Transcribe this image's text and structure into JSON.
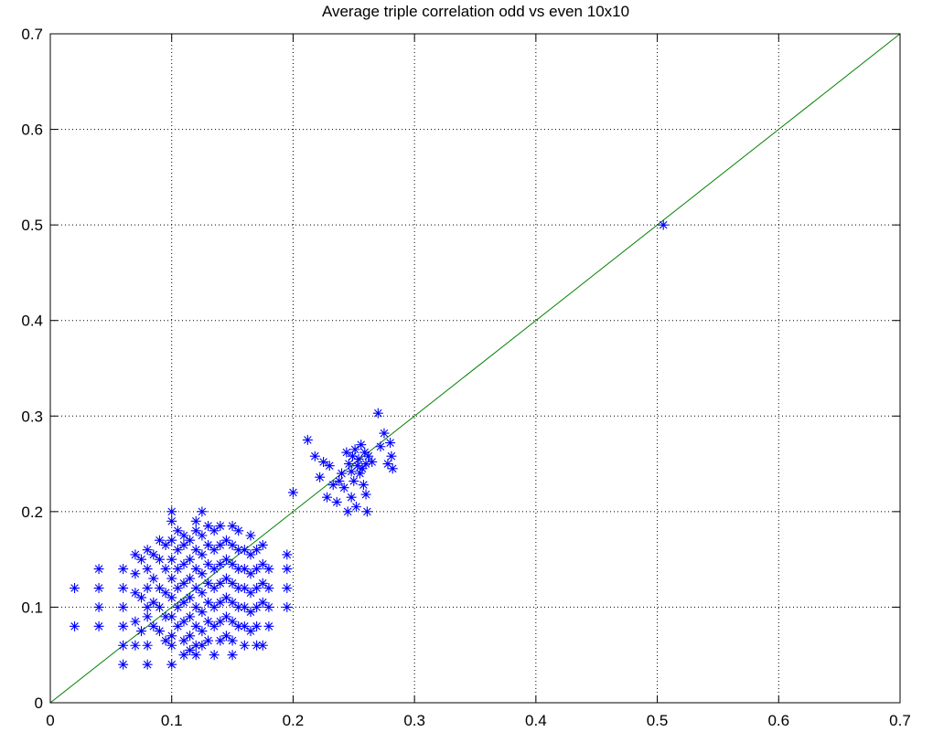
{
  "chart_data": {
    "type": "scatter",
    "title": "Average triple correlation odd vs even 10x10",
    "xlabel": "",
    "ylabel": "",
    "xlim": [
      0,
      0.7
    ],
    "ylim": [
      0,
      0.7
    ],
    "xticks": [
      0,
      0.1,
      0.2,
      0.3,
      0.4,
      0.5,
      0.6,
      0.7
    ],
    "yticks": [
      0,
      0.1,
      0.2,
      0.3,
      0.4,
      0.5,
      0.6,
      0.7
    ],
    "xtick_labels": [
      "0",
      "0.1",
      "0.2",
      "0.3",
      "0.4",
      "0.5",
      "0.6",
      "0.7"
    ],
    "ytick_labels": [
      "0",
      "0.1",
      "0.2",
      "0.3",
      "0.4",
      "0.5",
      "0.6",
      "0.7"
    ],
    "grid": true,
    "marker": "asterisk",
    "marker_color": "#0000ff",
    "line_color": "#008000",
    "reference_line": {
      "x": [
        0,
        0.7
      ],
      "y": [
        0,
        0.7
      ]
    },
    "series": [
      {
        "points": [
          [
            0.02,
            0.12
          ],
          [
            0.02,
            0.08
          ],
          [
            0.04,
            0.14
          ],
          [
            0.04,
            0.12
          ],
          [
            0.04,
            0.1
          ],
          [
            0.04,
            0.08
          ],
          [
            0.06,
            0.14
          ],
          [
            0.06,
            0.12
          ],
          [
            0.06,
            0.1
          ],
          [
            0.06,
            0.08
          ],
          [
            0.06,
            0.06
          ],
          [
            0.06,
            0.04
          ],
          [
            0.07,
            0.155
          ],
          [
            0.07,
            0.135
          ],
          [
            0.07,
            0.115
          ],
          [
            0.07,
            0.085
          ],
          [
            0.07,
            0.06
          ],
          [
            0.075,
            0.15
          ],
          [
            0.075,
            0.11
          ],
          [
            0.075,
            0.075
          ],
          [
            0.08,
            0.16
          ],
          [
            0.08,
            0.14
          ],
          [
            0.08,
            0.12
          ],
          [
            0.08,
            0.1
          ],
          [
            0.08,
            0.09
          ],
          [
            0.08,
            0.06
          ],
          [
            0.08,
            0.04
          ],
          [
            0.085,
            0.155
          ],
          [
            0.085,
            0.13
          ],
          [
            0.085,
            0.105
          ],
          [
            0.085,
            0.08
          ],
          [
            0.09,
            0.17
          ],
          [
            0.09,
            0.15
          ],
          [
            0.09,
            0.12
          ],
          [
            0.09,
            0.1
          ],
          [
            0.09,
            0.075
          ],
          [
            0.095,
            0.165
          ],
          [
            0.095,
            0.14
          ],
          [
            0.095,
            0.115
          ],
          [
            0.095,
            0.09
          ],
          [
            0.095,
            0.065
          ],
          [
            0.1,
            0.2
          ],
          [
            0.1,
            0.19
          ],
          [
            0.1,
            0.17
          ],
          [
            0.1,
            0.15
          ],
          [
            0.1,
            0.13
          ],
          [
            0.1,
            0.11
          ],
          [
            0.1,
            0.09
          ],
          [
            0.1,
            0.07
          ],
          [
            0.1,
            0.06
          ],
          [
            0.1,
            0.04
          ],
          [
            0.105,
            0.18
          ],
          [
            0.105,
            0.16
          ],
          [
            0.105,
            0.14
          ],
          [
            0.105,
            0.12
          ],
          [
            0.105,
            0.1
          ],
          [
            0.105,
            0.08
          ],
          [
            0.11,
            0.175
          ],
          [
            0.11,
            0.165
          ],
          [
            0.11,
            0.145
          ],
          [
            0.11,
            0.125
          ],
          [
            0.11,
            0.105
          ],
          [
            0.11,
            0.085
          ],
          [
            0.11,
            0.065
          ],
          [
            0.11,
            0.05
          ],
          [
            0.115,
            0.17
          ],
          [
            0.115,
            0.15
          ],
          [
            0.115,
            0.13
          ],
          [
            0.115,
            0.11
          ],
          [
            0.115,
            0.09
          ],
          [
            0.115,
            0.07
          ],
          [
            0.115,
            0.055
          ],
          [
            0.12,
            0.19
          ],
          [
            0.12,
            0.18
          ],
          [
            0.12,
            0.16
          ],
          [
            0.12,
            0.14
          ],
          [
            0.12,
            0.12
          ],
          [
            0.12,
            0.1
          ],
          [
            0.12,
            0.08
          ],
          [
            0.12,
            0.06
          ],
          [
            0.12,
            0.05
          ],
          [
            0.125,
            0.2
          ],
          [
            0.125,
            0.175
          ],
          [
            0.125,
            0.155
          ],
          [
            0.125,
            0.135
          ],
          [
            0.125,
            0.115
          ],
          [
            0.125,
            0.095
          ],
          [
            0.125,
            0.075
          ],
          [
            0.125,
            0.06
          ],
          [
            0.13,
            0.185
          ],
          [
            0.13,
            0.165
          ],
          [
            0.13,
            0.145
          ],
          [
            0.13,
            0.125
          ],
          [
            0.13,
            0.105
          ],
          [
            0.13,
            0.085
          ],
          [
            0.13,
            0.065
          ],
          [
            0.135,
            0.18
          ],
          [
            0.135,
            0.16
          ],
          [
            0.135,
            0.14
          ],
          [
            0.135,
            0.12
          ],
          [
            0.135,
            0.1
          ],
          [
            0.135,
            0.08
          ],
          [
            0.135,
            0.05
          ],
          [
            0.14,
            0.185
          ],
          [
            0.14,
            0.165
          ],
          [
            0.14,
            0.145
          ],
          [
            0.14,
            0.125
          ],
          [
            0.14,
            0.105
          ],
          [
            0.14,
            0.085
          ],
          [
            0.14,
            0.065
          ],
          [
            0.145,
            0.17
          ],
          [
            0.145,
            0.15
          ],
          [
            0.145,
            0.13
          ],
          [
            0.145,
            0.11
          ],
          [
            0.145,
            0.09
          ],
          [
            0.145,
            0.07
          ],
          [
            0.15,
            0.185
          ],
          [
            0.15,
            0.165
          ],
          [
            0.15,
            0.145
          ],
          [
            0.15,
            0.125
          ],
          [
            0.15,
            0.105
          ],
          [
            0.15,
            0.085
          ],
          [
            0.15,
            0.065
          ],
          [
            0.15,
            0.05
          ],
          [
            0.155,
            0.18
          ],
          [
            0.155,
            0.16
          ],
          [
            0.155,
            0.14
          ],
          [
            0.155,
            0.12
          ],
          [
            0.155,
            0.1
          ],
          [
            0.155,
            0.08
          ],
          [
            0.16,
            0.16
          ],
          [
            0.16,
            0.14
          ],
          [
            0.16,
            0.12
          ],
          [
            0.16,
            0.1
          ],
          [
            0.16,
            0.08
          ],
          [
            0.16,
            0.06
          ],
          [
            0.165,
            0.175
          ],
          [
            0.165,
            0.155
          ],
          [
            0.165,
            0.135
          ],
          [
            0.165,
            0.115
          ],
          [
            0.165,
            0.095
          ],
          [
            0.165,
            0.075
          ],
          [
            0.17,
            0.16
          ],
          [
            0.17,
            0.14
          ],
          [
            0.17,
            0.12
          ],
          [
            0.17,
            0.1
          ],
          [
            0.17,
            0.08
          ],
          [
            0.17,
            0.06
          ],
          [
            0.175,
            0.165
          ],
          [
            0.175,
            0.145
          ],
          [
            0.175,
            0.125
          ],
          [
            0.175,
            0.105
          ],
          [
            0.175,
            0.06
          ],
          [
            0.18,
            0.14
          ],
          [
            0.18,
            0.12
          ],
          [
            0.18,
            0.1
          ],
          [
            0.18,
            0.08
          ],
          [
            0.195,
            0.155
          ],
          [
            0.195,
            0.14
          ],
          [
            0.195,
            0.12
          ],
          [
            0.195,
            0.1
          ],
          [
            0.2,
            0.22
          ],
          [
            0.212,
            0.275
          ],
          [
            0.218,
            0.258
          ],
          [
            0.222,
            0.236
          ],
          [
            0.225,
            0.252
          ],
          [
            0.228,
            0.215
          ],
          [
            0.23,
            0.248
          ],
          [
            0.233,
            0.228
          ],
          [
            0.236,
            0.21
          ],
          [
            0.238,
            0.232
          ],
          [
            0.24,
            0.24
          ],
          [
            0.242,
            0.225
          ],
          [
            0.244,
            0.262
          ],
          [
            0.245,
            0.2
          ],
          [
            0.246,
            0.25
          ],
          [
            0.248,
            0.215
          ],
          [
            0.248,
            0.242
          ],
          [
            0.249,
            0.258
          ],
          [
            0.25,
            0.232
          ],
          [
            0.251,
            0.265
          ],
          [
            0.252,
            0.205
          ],
          [
            0.253,
            0.248
          ],
          [
            0.254,
            0.255
          ],
          [
            0.255,
            0.24
          ],
          [
            0.256,
            0.27
          ],
          [
            0.257,
            0.245
          ],
          [
            0.258,
            0.228
          ],
          [
            0.259,
            0.262
          ],
          [
            0.26,
            0.25
          ],
          [
            0.26,
            0.218
          ],
          [
            0.261,
            0.2
          ],
          [
            0.262,
            0.258
          ],
          [
            0.265,
            0.252
          ],
          [
            0.27,
            0.303
          ],
          [
            0.272,
            0.268
          ],
          [
            0.275,
            0.282
          ],
          [
            0.278,
            0.25
          ],
          [
            0.28,
            0.272
          ],
          [
            0.281,
            0.258
          ],
          [
            0.282,
            0.245
          ],
          [
            0.505,
            0.5
          ]
        ]
      }
    ]
  }
}
